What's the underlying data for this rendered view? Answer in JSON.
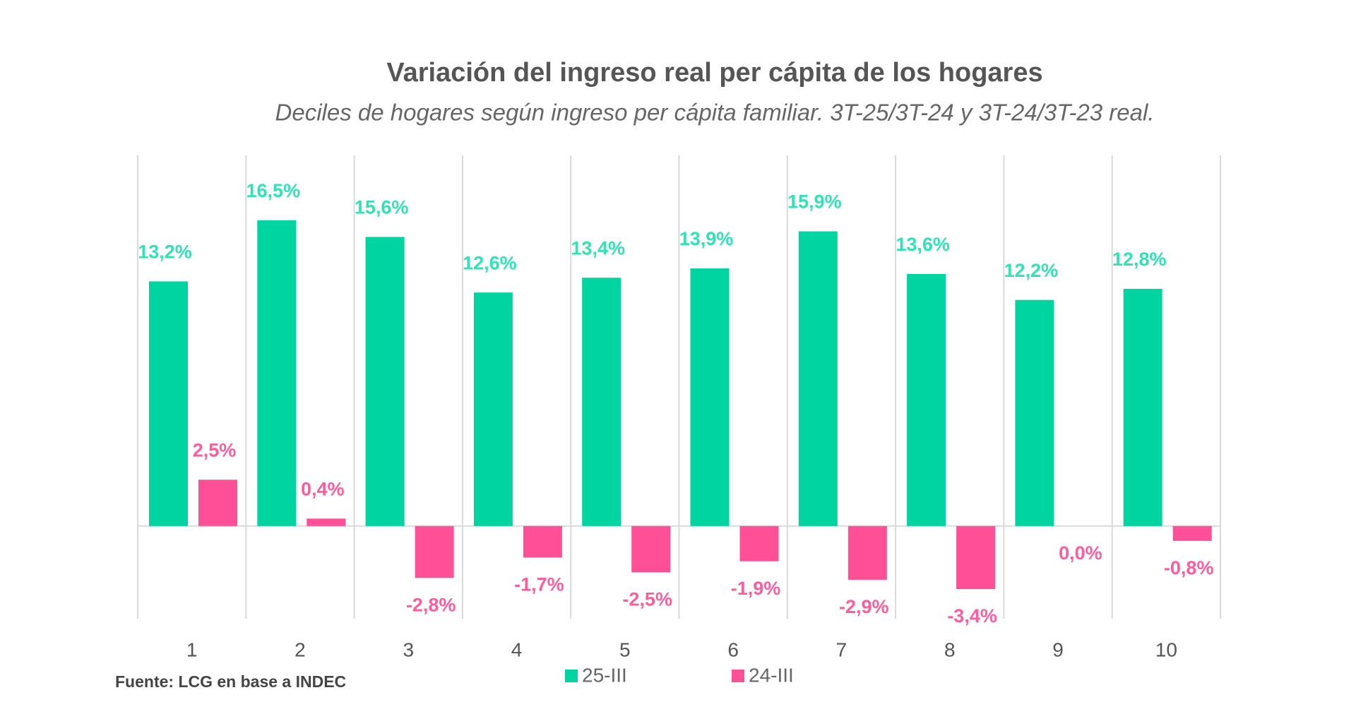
{
  "chart_data": {
    "type": "bar",
    "title": "Variación del ingreso real per cápita de los hogares",
    "subtitle": "Deciles de hogares según ingreso per cápita familiar. 3T-25/3T-24 y 3T-24/3T-23 real.",
    "categories": [
      "1",
      "2",
      "3",
      "4",
      "5",
      "6",
      "7",
      "8",
      "9",
      "10"
    ],
    "series": [
      {
        "name": "25-III",
        "color": "#00d4a0",
        "label_color": "#2ee3b4",
        "values": [
          13.2,
          16.5,
          15.6,
          12.6,
          13.4,
          13.9,
          15.9,
          13.6,
          12.2,
          12.8
        ],
        "value_labels": [
          "13,2%",
          "16,5%",
          "15,6%",
          "12,6%",
          "13,4%",
          "13,9%",
          "15,9%",
          "13,6%",
          "12,2%",
          "12,8%"
        ]
      },
      {
        "name": "24-III",
        "color": "#ff4f96",
        "label_color": "#ff5c9d",
        "values": [
          2.5,
          0.4,
          -2.8,
          -1.7,
          -2.5,
          -1.9,
          -2.9,
          -3.4,
          0.0,
          -0.8
        ],
        "value_labels": [
          "2,5%",
          "0,4%",
          "-2,8%",
          "-1,7%",
          "-2,5%",
          "-1,9%",
          "-2,9%",
          "-3,4%",
          "0,0%",
          "-0,8%"
        ]
      }
    ],
    "ylim": [
      -5,
      20
    ],
    "grid": true,
    "source": "Fuente: LCG en base a INDEC"
  }
}
